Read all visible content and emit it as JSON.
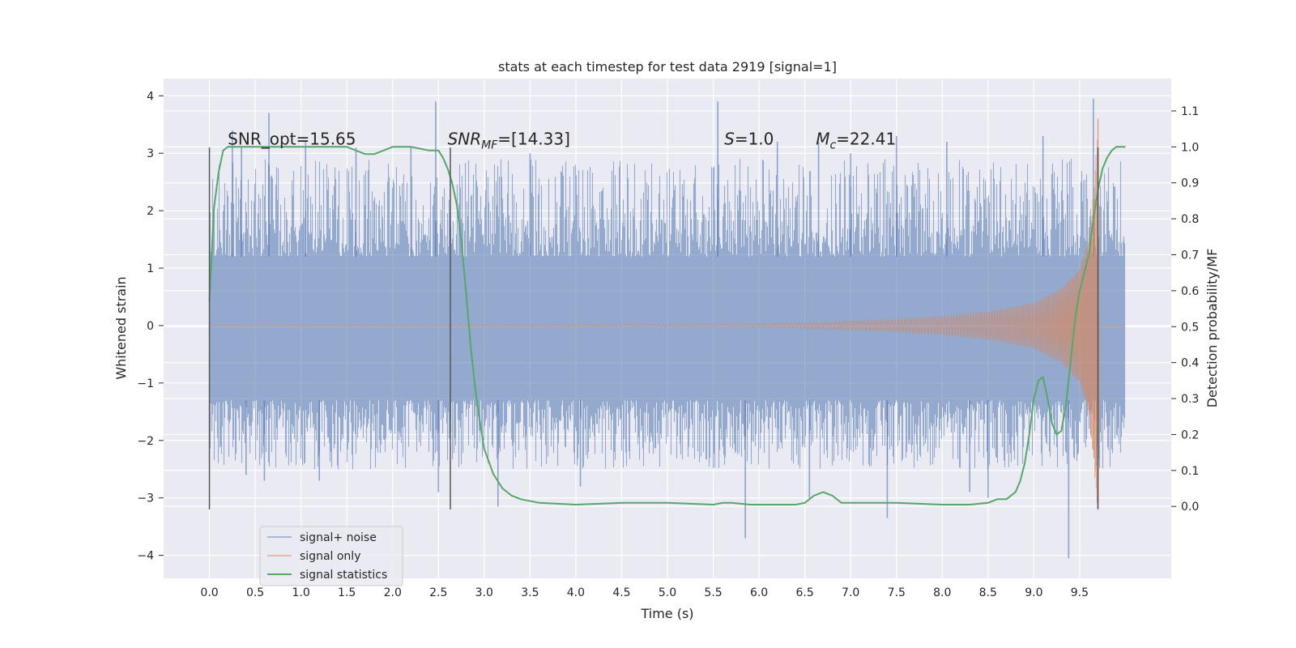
{
  "chart_data": {
    "type": "line",
    "title": "stats at each timestep for test data 2919 [signal=1]",
    "xlabel": "Time (s)",
    "ylabel_left": "Whitened strain",
    "ylabel_right": "Detection probability/MF",
    "xlim": [
      -0.5,
      10.5
    ],
    "ylim_left": [
      -4.4,
      4.3
    ],
    "ylim_right": [
      -0.2,
      1.19
    ],
    "x_ticks": [
      "0.0",
      "0.5",
      "1.0",
      "1.5",
      "2.0",
      "2.5",
      "3.0",
      "3.5",
      "4.0",
      "4.5",
      "5.0",
      "5.5",
      "6.0",
      "6.5",
      "7.0",
      "7.5",
      "8.0",
      "8.5",
      "9.0",
      "9.5"
    ],
    "y_left_ticks": [
      "4",
      "3",
      "2",
      "1",
      "0",
      "−1",
      "−2",
      "−3",
      "−4"
    ],
    "y_right_ticks": [
      "1.1",
      "1.0",
      "0.9",
      "0.8",
      "0.7",
      "0.6",
      "0.5",
      "0.4",
      "0.3",
      "0.2",
      "0.1",
      "0.0"
    ],
    "grid": true,
    "legend_position": "lower-left",
    "background_color": "#eaeaf2",
    "series": [
      {
        "name": "signal+ noise",
        "axis": "left",
        "color": "#4c72b0",
        "x_range": [
          0.0,
          10.0
        ],
        "band_upper": 1.2,
        "band_lower": -1.3,
        "spike_tops": [
          {
            "x": 0.25,
            "y": 3.4
          },
          {
            "x": 0.35,
            "y": 3.1
          },
          {
            "x": 0.65,
            "y": 3.7
          },
          {
            "x": 1.05,
            "y": 3.2
          },
          {
            "x": 1.6,
            "y": 3.1
          },
          {
            "x": 2.2,
            "y": 3.1
          },
          {
            "x": 2.47,
            "y": 3.9
          },
          {
            "x": 3.5,
            "y": 3.0
          },
          {
            "x": 5.55,
            "y": 3.9
          },
          {
            "x": 6.2,
            "y": 3.2
          },
          {
            "x": 6.65,
            "y": 3.2
          },
          {
            "x": 7.0,
            "y": 3.0
          },
          {
            "x": 7.5,
            "y": 3.3
          },
          {
            "x": 8.05,
            "y": 3.2
          },
          {
            "x": 9.1,
            "y": 3.3
          },
          {
            "x": 9.65,
            "y": 3.95
          }
        ],
        "spike_bottoms": [
          {
            "x": 0.4,
            "y": -2.6
          },
          {
            "x": 0.6,
            "y": -2.7
          },
          {
            "x": 1.2,
            "y": -2.7
          },
          {
            "x": 2.5,
            "y": -2.9
          },
          {
            "x": 3.15,
            "y": -3.15
          },
          {
            "x": 4.05,
            "y": -2.8
          },
          {
            "x": 5.85,
            "y": -3.7
          },
          {
            "x": 6.55,
            "y": -3.0
          },
          {
            "x": 7.4,
            "y": -3.35
          },
          {
            "x": 8.3,
            "y": -2.9
          },
          {
            "x": 8.5,
            "y": -3.0
          },
          {
            "x": 9.38,
            "y": -4.05
          }
        ]
      },
      {
        "name": "signal only",
        "axis": "left",
        "color": "#dd8452",
        "envelope": [
          [
            0.0,
            0.0
          ],
          [
            5.5,
            0.02
          ],
          [
            6.0,
            0.03
          ],
          [
            6.5,
            0.05
          ],
          [
            7.0,
            0.08
          ],
          [
            7.5,
            0.11
          ],
          [
            8.0,
            0.16
          ],
          [
            8.5,
            0.24
          ],
          [
            9.0,
            0.4
          ],
          [
            9.3,
            0.65
          ],
          [
            9.5,
            1.0
          ],
          [
            9.6,
            1.5
          ],
          [
            9.66,
            2.5
          ],
          [
            9.7,
            3.6
          ],
          [
            9.72,
            0.0
          ],
          [
            10.0,
            0.0
          ]
        ]
      },
      {
        "name": "signal statistics",
        "axis": "right",
        "color": "#55a868",
        "x": [
          0.0,
          0.05,
          0.1,
          0.15,
          0.2,
          0.3,
          0.5,
          0.8,
          1.0,
          1.3,
          1.5,
          1.6,
          1.7,
          1.8,
          1.9,
          2.0,
          2.2,
          2.4,
          2.5,
          2.55,
          2.6,
          2.65,
          2.7,
          2.75,
          2.8,
          2.85,
          2.9,
          2.95,
          3.0,
          3.1,
          3.2,
          3.3,
          3.4,
          3.6,
          4.0,
          4.5,
          5.0,
          5.5,
          5.6,
          5.7,
          5.9,
          6.2,
          6.4,
          6.5,
          6.6,
          6.7,
          6.8,
          6.9,
          7.0,
          7.5,
          8.0,
          8.3,
          8.5,
          8.6,
          8.7,
          8.75,
          8.8,
          8.85,
          8.9,
          8.95,
          9.0,
          9.05,
          9.1,
          9.15,
          9.2,
          9.25,
          9.3,
          9.35,
          9.4,
          9.45,
          9.5,
          9.55,
          9.6,
          9.65,
          9.7,
          9.75,
          9.8,
          9.85,
          9.9,
          9.95,
          10.0
        ],
        "values": [
          0.57,
          0.83,
          0.93,
          0.99,
          1.0,
          1.0,
          1.0,
          1.0,
          1.0,
          1.0,
          1.0,
          0.99,
          0.98,
          0.98,
          0.99,
          1.0,
          1.0,
          0.99,
          0.99,
          0.97,
          0.94,
          0.9,
          0.84,
          0.74,
          0.6,
          0.45,
          0.33,
          0.24,
          0.16,
          0.09,
          0.05,
          0.03,
          0.02,
          0.01,
          0.005,
          0.01,
          0.01,
          0.005,
          0.01,
          0.01,
          0.005,
          0.005,
          0.005,
          0.01,
          0.03,
          0.04,
          0.03,
          0.01,
          0.01,
          0.01,
          0.005,
          0.005,
          0.01,
          0.02,
          0.02,
          0.03,
          0.04,
          0.07,
          0.12,
          0.2,
          0.3,
          0.35,
          0.36,
          0.3,
          0.23,
          0.2,
          0.21,
          0.28,
          0.4,
          0.52,
          0.6,
          0.65,
          0.7,
          0.8,
          0.88,
          0.94,
          0.97,
          0.99,
          1.0,
          1.0,
          1.0
        ]
      }
    ],
    "vertical_lines": [
      {
        "x": 0.0,
        "y_left": [
          -3.2,
          3.1
        ]
      },
      {
        "x": 2.63,
        "y_left": [
          -3.2,
          3.1
        ]
      },
      {
        "x": 9.7,
        "y_left": [
          -3.2,
          3.1
        ]
      }
    ],
    "annotations": [
      {
        "x": 0.2,
        "y": 3.15,
        "parts": [
          {
            "t": "SNR_opt=15.65"
          }
        ]
      },
      {
        "x": 2.6,
        "y": 3.15,
        "parts": [
          {
            "t": "SNR",
            "i": true
          },
          {
            "t": "MF",
            "i": true,
            "sub": true
          },
          {
            "t": "=[14.33]"
          }
        ]
      },
      {
        "x": 5.62,
        "y": 3.15,
        "parts": [
          {
            "t": "S",
            "i": true
          },
          {
            "t": "=1.0"
          }
        ]
      },
      {
        "x": 6.62,
        "y": 3.15,
        "parts": [
          {
            "t": "M",
            "i": true
          },
          {
            "t": "c",
            "i": true,
            "sub": true
          },
          {
            "t": "=22.41"
          }
        ]
      }
    ]
  }
}
